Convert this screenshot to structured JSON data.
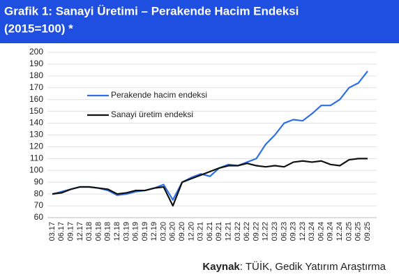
{
  "chart_data": {
    "type": "line",
    "title": [
      "Grafik 1: Sanayi Üretimi – Perakende Hacim Endeksi",
      "(2015=100) *"
    ],
    "categories": [
      "03.17",
      "06.17",
      "09.17",
      "12.17",
      "03.18",
      "06.18",
      "09.18",
      "12.18",
      "03.19",
      "06.19",
      "09.19",
      "12.19",
      "03.20",
      "06.20",
      "09.20",
      "12.20",
      "03.21",
      "06.21",
      "09.21",
      "12.21",
      "03.22",
      "06.22",
      "09.22",
      "12.22",
      "03.23",
      "06.23",
      "09.23",
      "12.23",
      "03.24",
      "06.24",
      "09.24",
      "12.24",
      "03.25",
      "06.25",
      "09.25"
    ],
    "series": [
      {
        "name": "Perakende hacim endeksi",
        "color": "#2e6fe6",
        "values": [
          80,
          82,
          84,
          86,
          86,
          85,
          83,
          79,
          80,
          82,
          83,
          85,
          88,
          75,
          90,
          94,
          97,
          95,
          102,
          105,
          104,
          107,
          110,
          122,
          130,
          140,
          143,
          142,
          148,
          155,
          155,
          160,
          170,
          174,
          184
        ]
      },
      {
        "name": "Sanayi üretim endeksi",
        "color": "#111111",
        "values": [
          80,
          81,
          84,
          86,
          86,
          85,
          84,
          80,
          81,
          83,
          83,
          85,
          86,
          70,
          90,
          93,
          96,
          99,
          102,
          104,
          104,
          106,
          104,
          103,
          104,
          103,
          107,
          108,
          107,
          108,
          105,
          104,
          109,
          110,
          110
        ]
      }
    ],
    "ylim": [
      60,
      200
    ],
    "yticks": [
      60,
      70,
      80,
      90,
      100,
      110,
      120,
      130,
      140,
      150,
      160,
      170,
      180,
      190,
      200
    ],
    "grid": true,
    "source_label": "Kaynak",
    "source_text": ": TÜİK, Gedik Yatırım Araştırma"
  }
}
